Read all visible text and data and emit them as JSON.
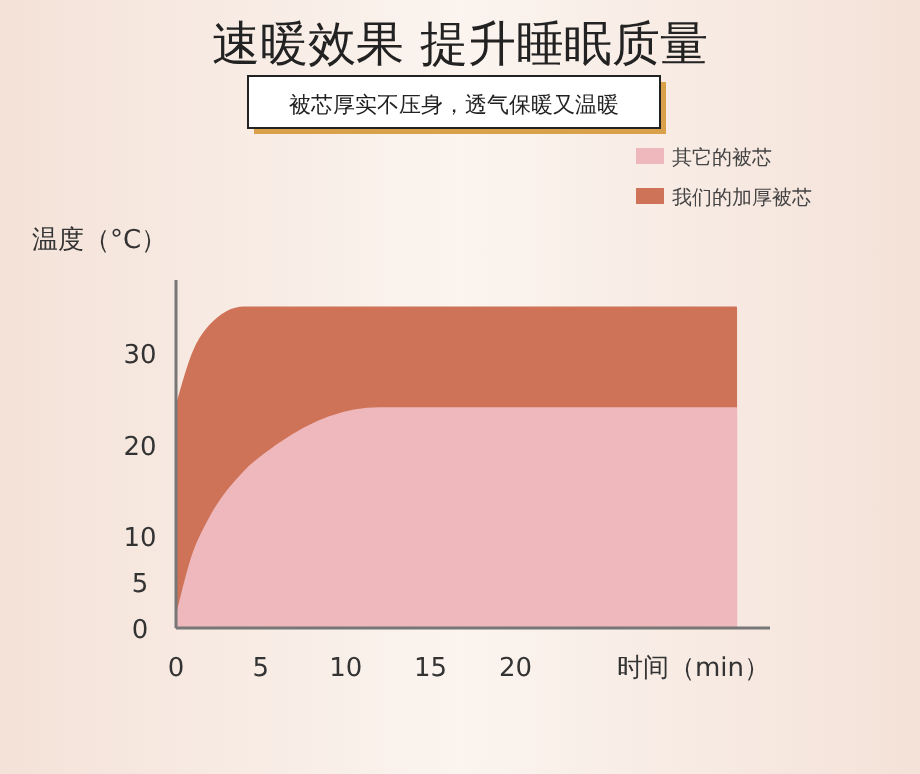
{
  "chart_data": {
    "type": "area",
    "title": "速暖效果 提升睡眠质量",
    "subtitle": "被芯厚实不压身，透气保暖又温暖",
    "xlabel": "时间（min）",
    "ylabel": "温度（°C）",
    "x": [
      0,
      1,
      2,
      4,
      6,
      9,
      12,
      33
    ],
    "series": [
      {
        "name": "其它的被芯",
        "color": "#eeb8bc",
        "values": [
          1,
          8,
          12,
          17,
          20,
          23,
          24,
          24
        ]
      },
      {
        "name": "我们的加厚被芯",
        "color": "#cf7358",
        "values": [
          24,
          30,
          33,
          35,
          35,
          35,
          35,
          35
        ]
      }
    ],
    "xlim": [
      0,
      35
    ],
    "xticks": [
      0,
      5,
      10,
      15,
      20
    ],
    "ylim": [
      0,
      38
    ],
    "yticks": [
      0,
      5,
      10,
      20,
      30
    ],
    "legend": "top right",
    "grid": false
  }
}
